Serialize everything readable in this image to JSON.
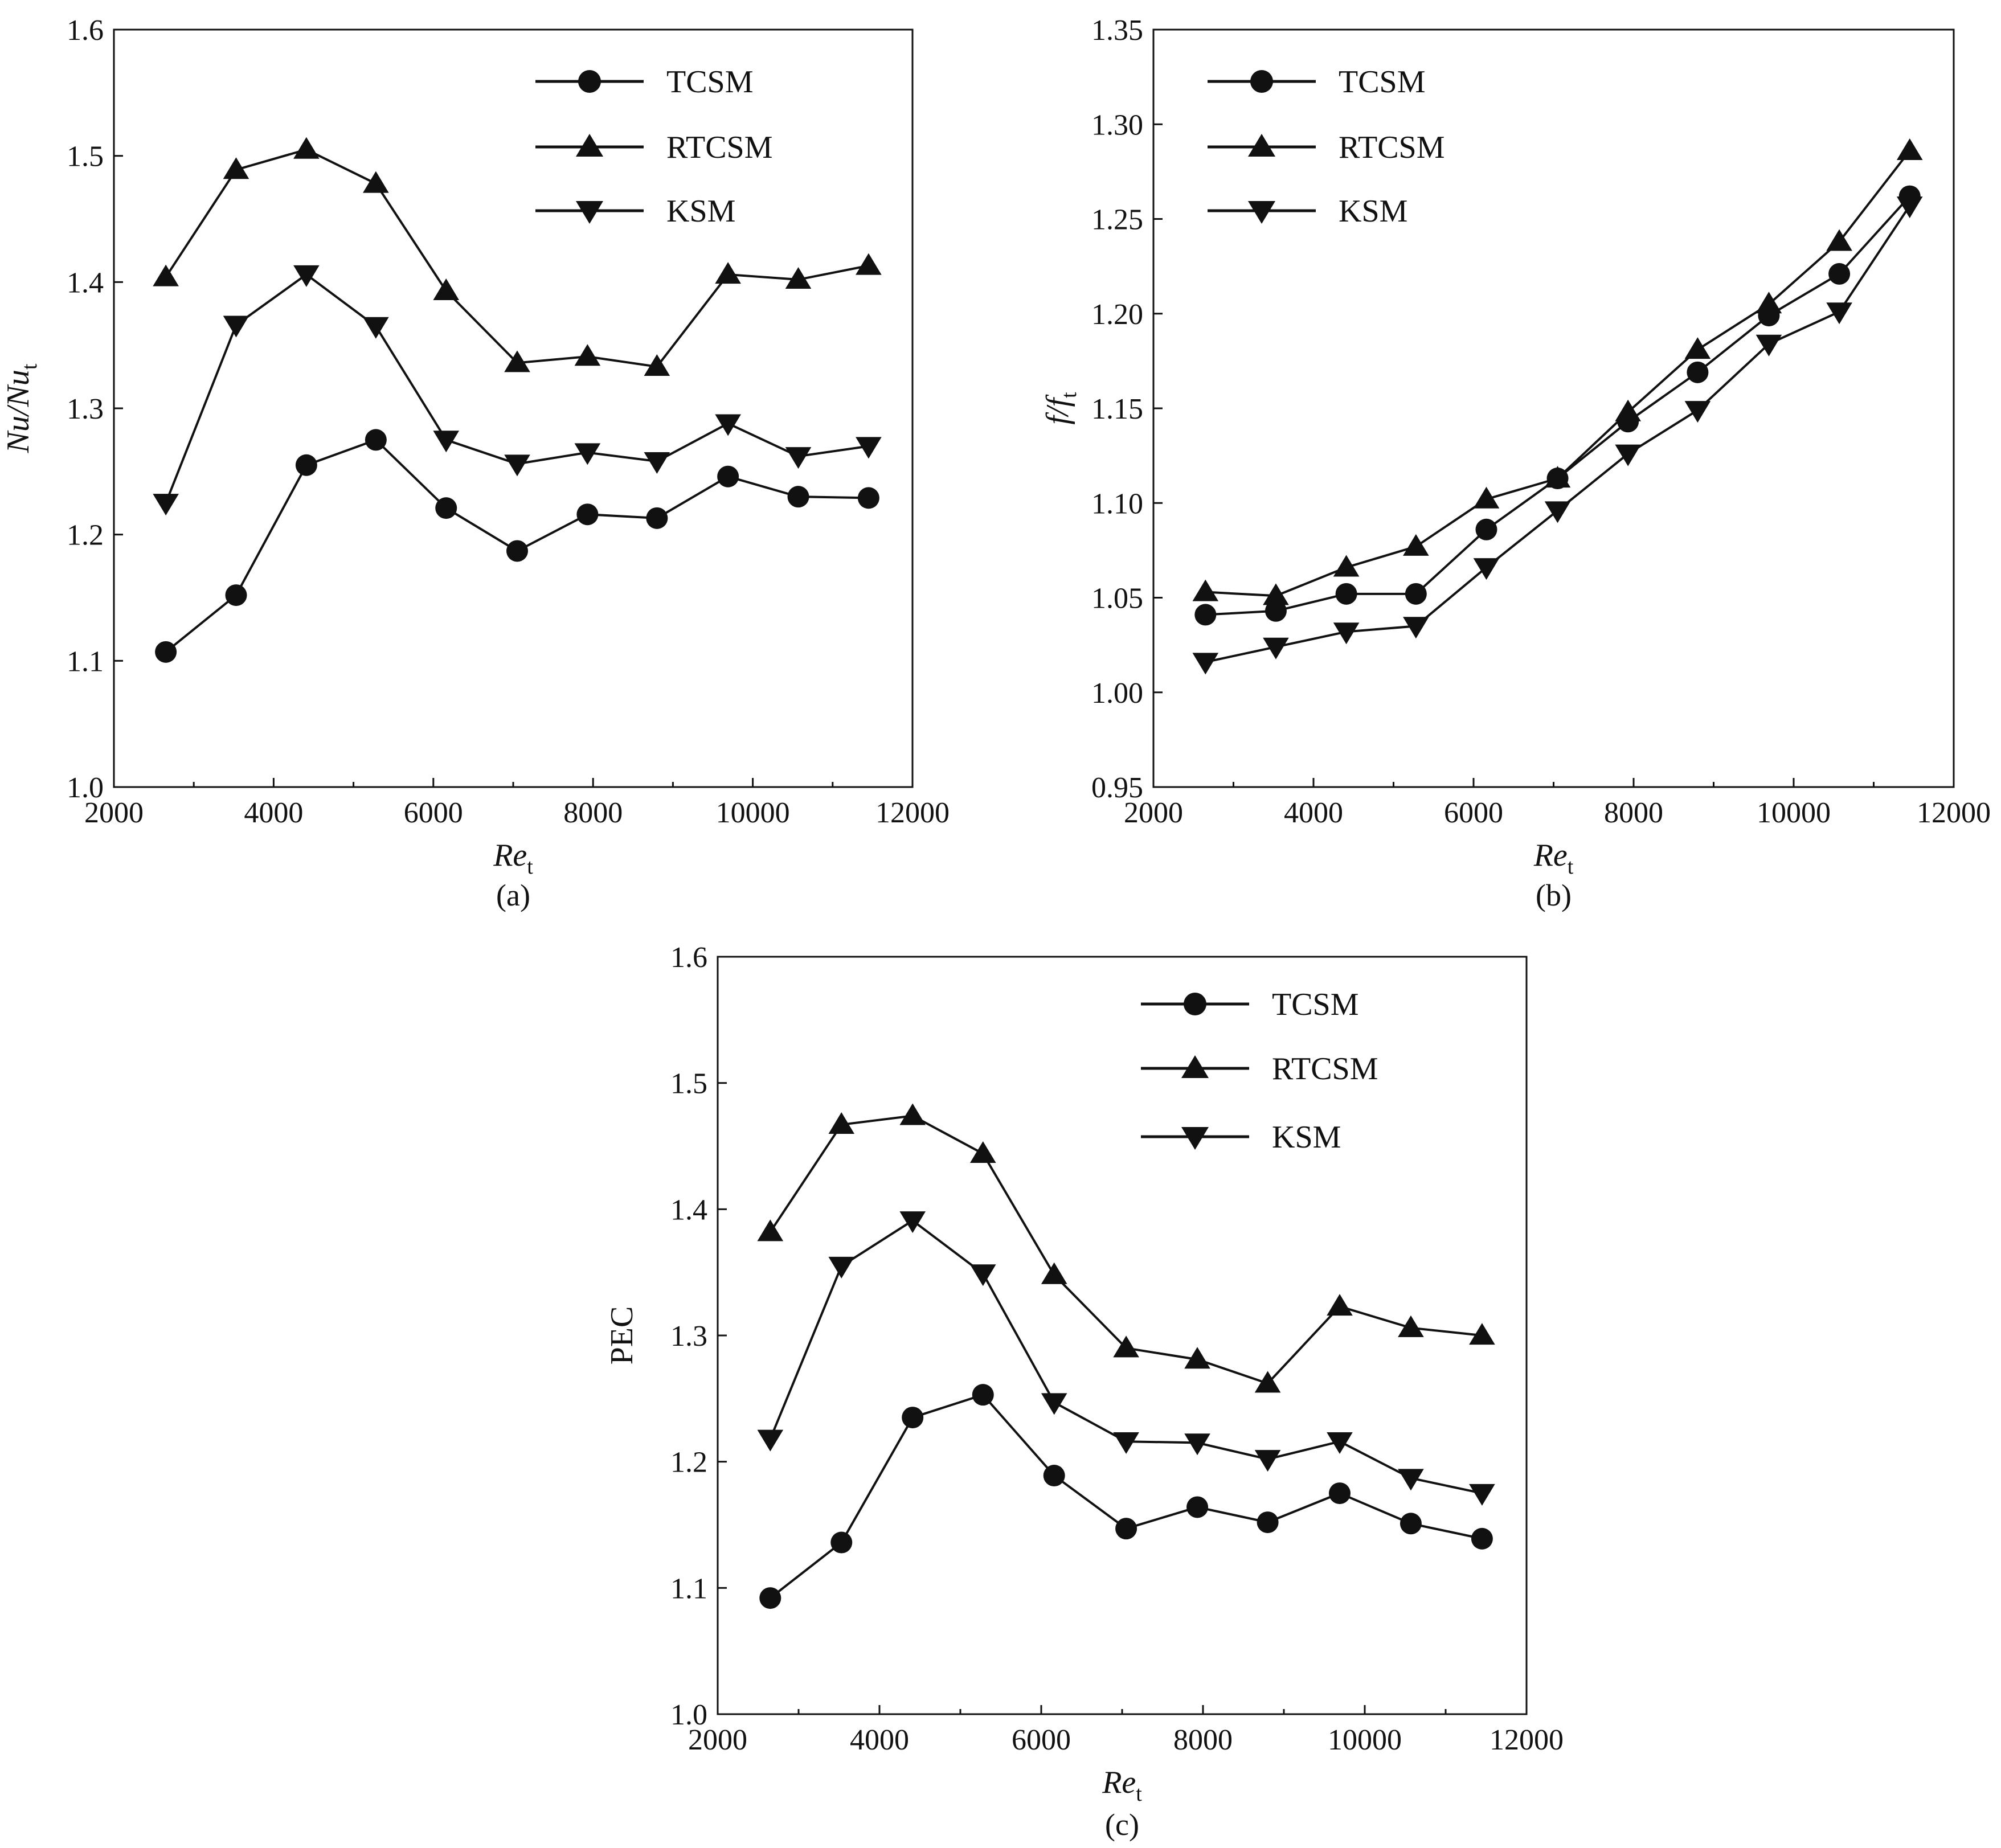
{
  "chart_data": [
    {
      "id": "a",
      "type": "line",
      "caption": "(a)",
      "xlabel_main": "Re",
      "xlabel_sub": "t",
      "ylabel_main": "Nu/Nu",
      "ylabel_sub": "t",
      "xlim": [
        2000,
        12000
      ],
      "ylim": [
        1.0,
        1.6
      ],
      "xticks": [
        2000,
        4000,
        6000,
        8000,
        10000,
        12000
      ],
      "yticks": [
        1.0,
        1.1,
        1.2,
        1.3,
        1.4,
        1.5,
        1.6
      ],
      "ytick_labels": [
        "1.0",
        "1.1",
        "1.2",
        "1.3",
        "1.4",
        "1.5",
        "1.6"
      ],
      "x": [
        2650,
        3530,
        4410,
        5280,
        6160,
        7050,
        7930,
        8800,
        9690,
        10570,
        11450
      ],
      "series": [
        {
          "name": "TCSM",
          "marker": "circle",
          "values": [
            1.107,
            1.152,
            1.255,
            1.275,
            1.221,
            1.187,
            1.216,
            1.213,
            1.246,
            1.23,
            1.229
          ]
        },
        {
          "name": "RTCSM",
          "marker": "triangle-up",
          "values": [
            1.404,
            1.489,
            1.505,
            1.478,
            1.393,
            1.336,
            1.341,
            1.333,
            1.406,
            1.402,
            1.413
          ]
        },
        {
          "name": "KSM",
          "marker": "triangle-down",
          "values": [
            1.225,
            1.366,
            1.406,
            1.365,
            1.275,
            1.256,
            1.265,
            1.258,
            1.288,
            1.262,
            1.27
          ]
        }
      ]
    },
    {
      "id": "b",
      "type": "line",
      "caption": "(b)",
      "xlabel_main": "Re",
      "xlabel_sub": "t",
      "ylabel_main": "f/f",
      "ylabel_sub": "t",
      "xlim": [
        2000,
        12000
      ],
      "ylim": [
        0.95,
        1.35
      ],
      "xticks": [
        2000,
        4000,
        6000,
        8000,
        10000,
        12000
      ],
      "yticks": [
        0.95,
        1.0,
        1.05,
        1.1,
        1.15,
        1.2,
        1.25,
        1.3,
        1.35
      ],
      "ytick_labels": [
        "0.95",
        "1.00",
        "1.05",
        "1.10",
        "1.15",
        "1.20",
        "1.25",
        "1.30",
        "1.35"
      ],
      "x": [
        2650,
        3530,
        4410,
        5280,
        6160,
        7050,
        7930,
        8800,
        9690,
        10570,
        11450
      ],
      "series": [
        {
          "name": "TCSM",
          "marker": "circle",
          "values": [
            1.041,
            1.043,
            1.052,
            1.052,
            1.086,
            1.113,
            1.143,
            1.169,
            1.199,
            1.221,
            1.262
          ]
        },
        {
          "name": "RTCSM",
          "marker": "triangle-up",
          "values": [
            1.053,
            1.051,
            1.066,
            1.077,
            1.102,
            1.113,
            1.148,
            1.181,
            1.205,
            1.238,
            1.286
          ]
        },
        {
          "name": "KSM",
          "marker": "triangle-down",
          "values": [
            1.016,
            1.024,
            1.032,
            1.035,
            1.066,
            1.096,
            1.126,
            1.149,
            1.184,
            1.201,
            1.257
          ]
        }
      ]
    },
    {
      "id": "c",
      "type": "line",
      "caption": "(c)",
      "xlabel_main": "Re",
      "xlabel_sub": "t",
      "ylabel_main": "PEC",
      "ylabel_sub": "",
      "xlim": [
        2000,
        12000
      ],
      "ylim": [
        1.0,
        1.6
      ],
      "xticks": [
        2000,
        4000,
        6000,
        8000,
        10000,
        12000
      ],
      "yticks": [
        1.0,
        1.1,
        1.2,
        1.3,
        1.4,
        1.5,
        1.6
      ],
      "ytick_labels": [
        "1.0",
        "1.1",
        "1.2",
        "1.3",
        "1.4",
        "1.5",
        "1.6"
      ],
      "x": [
        2650,
        3530,
        4410,
        5280,
        6160,
        7050,
        7930,
        8800,
        9690,
        10570,
        11450
      ],
      "series": [
        {
          "name": "TCSM",
          "marker": "circle",
          "values": [
            1.092,
            1.136,
            1.235,
            1.253,
            1.189,
            1.147,
            1.164,
            1.152,
            1.175,
            1.151,
            1.139
          ]
        },
        {
          "name": "RTCSM",
          "marker": "triangle-up",
          "values": [
            1.382,
            1.467,
            1.474,
            1.444,
            1.348,
            1.29,
            1.281,
            1.262,
            1.323,
            1.306,
            1.3
          ]
        },
        {
          "name": "KSM",
          "marker": "triangle-down",
          "values": [
            1.218,
            1.355,
            1.391,
            1.349,
            1.247,
            1.216,
            1.215,
            1.202,
            1.216,
            1.187,
            1.175
          ]
        }
      ]
    }
  ]
}
